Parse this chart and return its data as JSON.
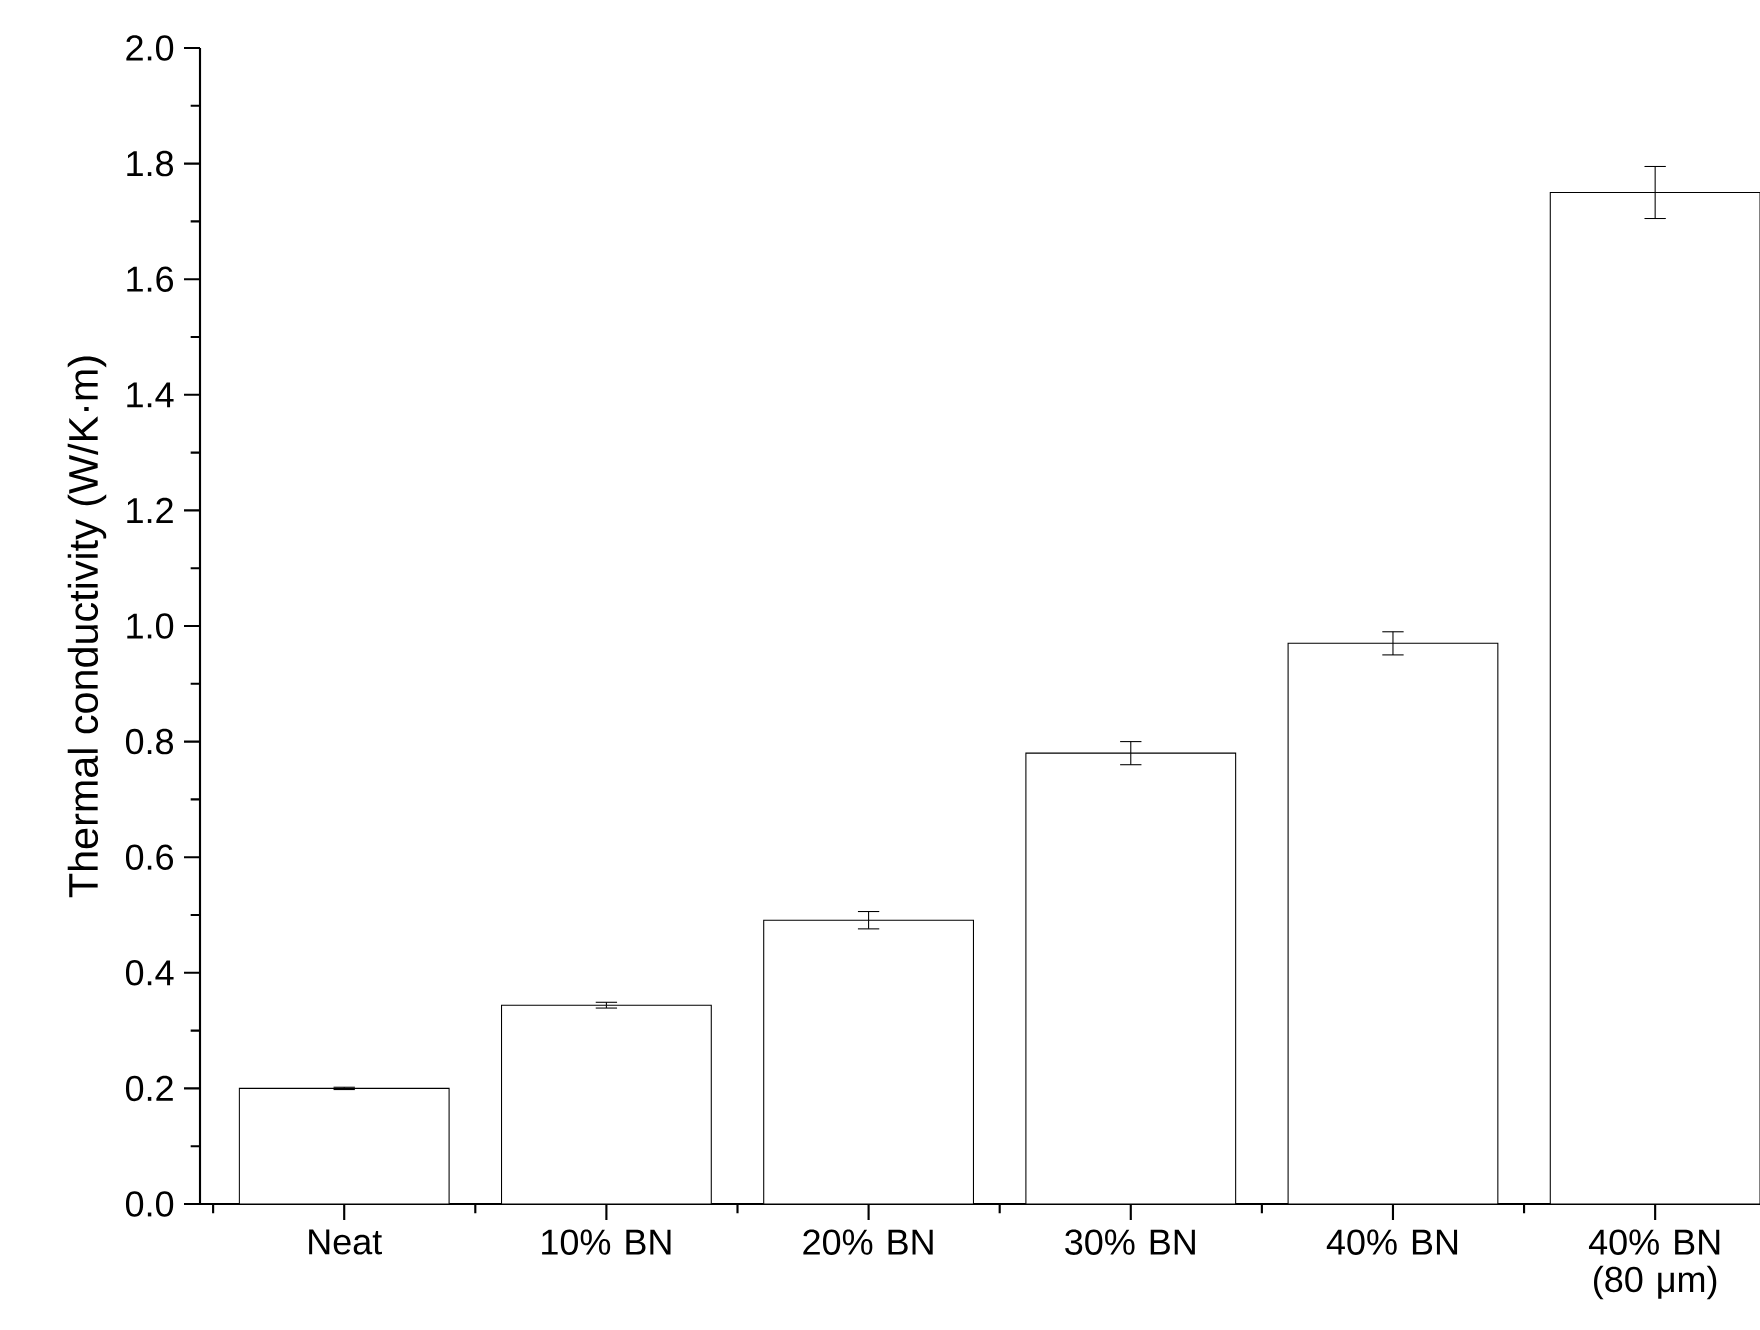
{
  "chart_data": {
    "type": "bar",
    "ylabel": "Thermal conductivity (W/K·m)",
    "categories": [
      "Neat",
      "10% BN",
      "20% BN",
      "30% BN",
      "40% BN",
      "40% BN (80 μm)"
    ],
    "values": [
      0.2,
      0.344,
      0.491,
      0.78,
      0.97,
      1.75
    ],
    "errors": [
      0.002,
      0.005,
      0.015,
      0.02,
      0.02,
      0.045
    ],
    "color": "#ffffff",
    "ylim": [
      0,
      2
    ],
    "yticks": [
      {
        "value": 0,
        "label": "0.0"
      },
      {
        "value": 0.2,
        "label": "0.2"
      },
      {
        "value": 0.4,
        "label": "0.4"
      },
      {
        "value": 0.6,
        "label": "0.6"
      },
      {
        "value": 0.8,
        "label": "0.8"
      },
      {
        "value": 1.0,
        "label": "1.0"
      },
      {
        "value": 1.2,
        "label": "1.2"
      },
      {
        "value": 1.4,
        "label": "1.4"
      },
      {
        "value": 1.6,
        "label": "1.6"
      },
      {
        "value": 1.8,
        "label": "1.8"
      },
      {
        "value": 2.0,
        "label": "2.0"
      }
    ]
  }
}
